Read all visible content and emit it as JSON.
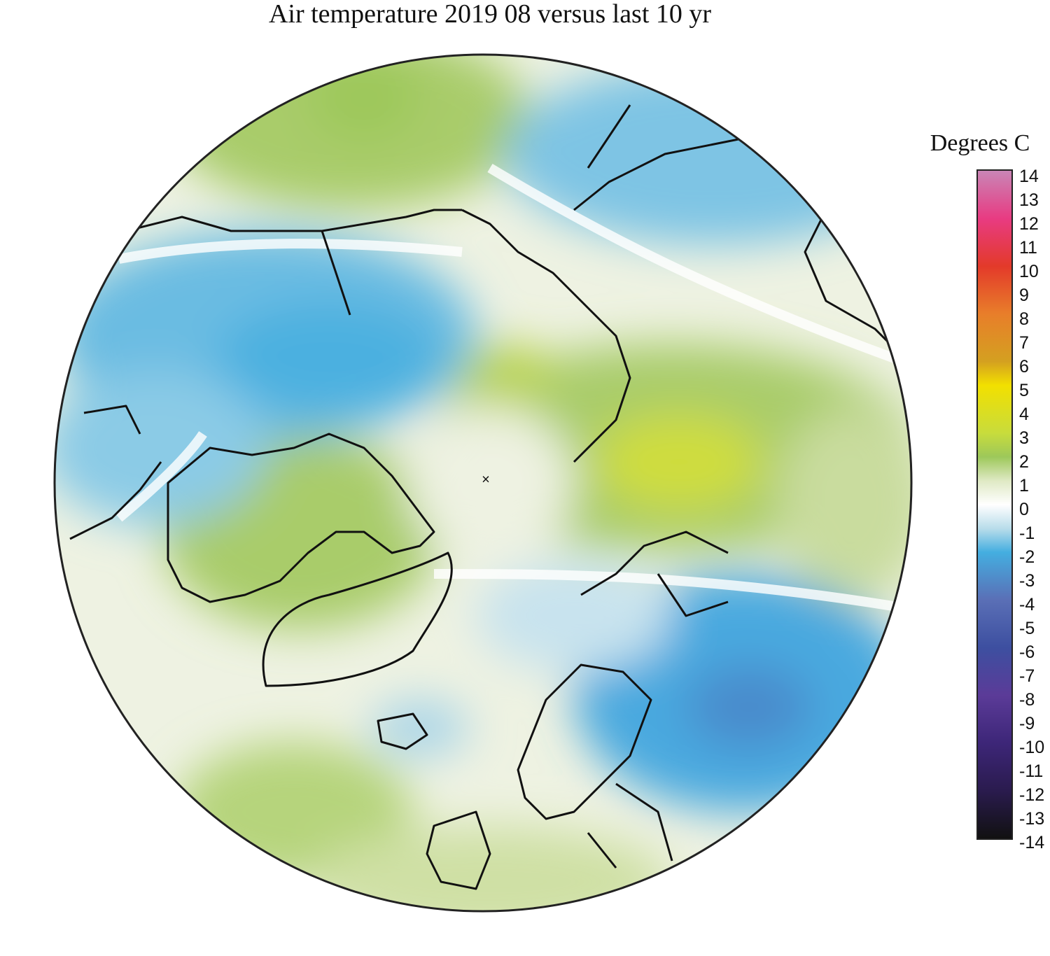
{
  "title": "Air temperature 2019 08 versus last 10 yr",
  "legend": {
    "title": "Degrees C",
    "ticks": [
      "14",
      "13",
      "12",
      "11",
      "10",
      "9",
      "8",
      "7",
      "6",
      "5",
      "4",
      "3",
      "2",
      "1",
      "0",
      "-1",
      "-2",
      "-3",
      "-4",
      "-5",
      "-6",
      "-7",
      "-8",
      "-9",
      "-10",
      "-11",
      "-12",
      "-13",
      "-14"
    ],
    "colors": {
      "14": "#c985b6",
      "12": "#e83b82",
      "10": "#e33a2a",
      "8": "#e87e2a",
      "6": "#d4a020",
      "5": "#f2e000",
      "3": "#c8dc3c",
      "2": "#9dc85a",
      "1": "#dfe9c4",
      "0": "#ffffff",
      "-1": "#b9ddea",
      "-2": "#44aee0",
      "-4": "#5a6fb6",
      "-6": "#3d4fa0",
      "-8": "#5b3b98",
      "-10": "#3d2678",
      "-12": "#2a1b4e",
      "-14": "#111111"
    }
  },
  "map": {
    "projection": "north-polar-stereographic",
    "pole_marker": "×",
    "marker_icon": "pole-cross-icon"
  }
}
